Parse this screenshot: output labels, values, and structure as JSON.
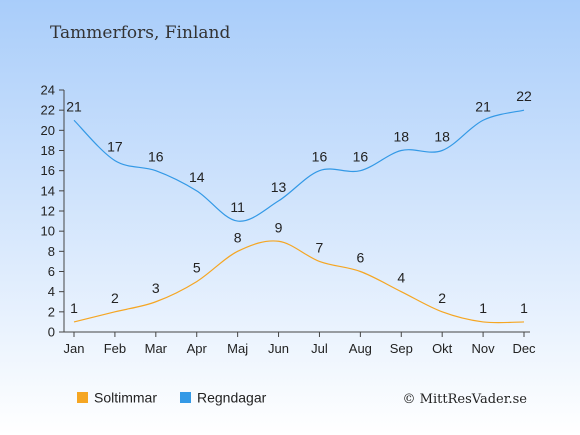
{
  "title": "Tammerfors, Finland",
  "credit": "© MittResVader.se",
  "chart_data": {
    "type": "line",
    "categories": [
      "Jan",
      "Feb",
      "Mar",
      "Apr",
      "Maj",
      "Jun",
      "Jul",
      "Aug",
      "Sep",
      "Okt",
      "Nov",
      "Dec"
    ],
    "ylim": [
      0,
      24
    ],
    "yticks": [
      0,
      2,
      4,
      6,
      8,
      10,
      12,
      14,
      16,
      18,
      20,
      22,
      24
    ],
    "series": [
      {
        "name": "Soltimmar",
        "color": "#f5a623",
        "values": [
          1,
          2,
          3,
          5,
          8,
          9,
          7,
          6,
          4,
          2,
          1,
          1
        ]
      },
      {
        "name": "Regndagar",
        "color": "#3399e6",
        "values": [
          21,
          17,
          16,
          14,
          11,
          13,
          16,
          16,
          18,
          18,
          21,
          22
        ]
      }
    ],
    "legend_position": "bottom-left",
    "grid": false
  }
}
